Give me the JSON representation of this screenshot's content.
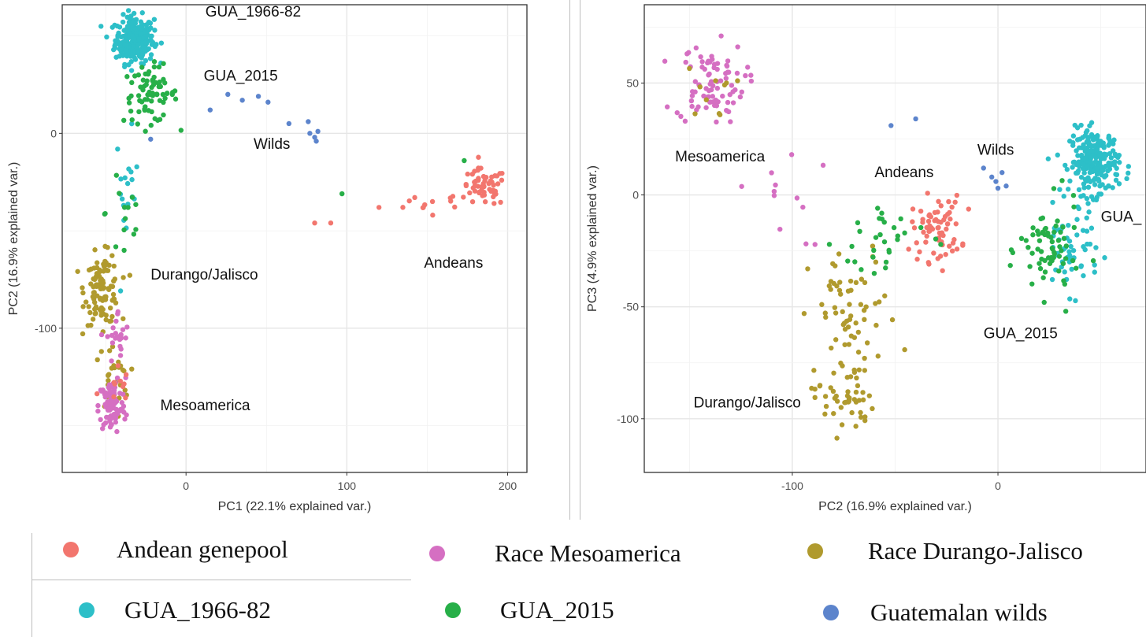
{
  "colors": {
    "andean": "#F2766E",
    "mesoamerica": "#D56FC2",
    "durango": "#B09A2E",
    "gua6682": "#2DBFC8",
    "gua2015": "#27AF48",
    "wilds": "#5C84CC"
  },
  "chart_data": [
    {
      "type": "scatter",
      "xlabel": "PC1 (22.1% explained var.)",
      "ylabel": "PC2 (16.9% explained var.)",
      "xlim": [
        -77,
        212
      ],
      "ylim": [
        -174,
        66
      ],
      "xticks": [
        0,
        100,
        200
      ],
      "yticks": [
        -100,
        0
      ],
      "grid": true,
      "annotations": [
        {
          "text": "GUA_1966-82",
          "x": 12,
          "y": 60
        },
        {
          "text": "GUA_2015",
          "x": 11,
          "y": 27
        },
        {
          "text": "Wilds",
          "x": 42,
          "y": -8
        },
        {
          "text": "Andeans",
          "x": 148,
          "y": -69
        },
        {
          "text": "Durango/Jalisco",
          "x": -22,
          "y": -75
        },
        {
          "text": "Mesoamerica",
          "x": -16,
          "y": -142
        }
      ],
      "groups": [
        {
          "key": "gua6682",
          "cx": [
            -32,
            10
          ],
          "cy": [
            48,
            10
          ],
          "n": 260
        },
        {
          "key": "gua6682",
          "cx": [
            -37,
            6
          ],
          "cy": [
            -30,
            25
          ],
          "n": 18
        },
        {
          "key": "gua2015",
          "cx": [
            -22,
            14
          ],
          "cy": [
            20,
            12
          ],
          "n": 75
        },
        {
          "key": "gua2015",
          "cx": [
            -38,
            10
          ],
          "cy": [
            -40,
            30
          ],
          "n": 14
        },
        {
          "key": "wilds",
          "x": [
            26,
            35,
            45,
            51,
            64,
            76,
            77,
            80,
            81,
            82,
            15,
            -22
          ],
          "y": [
            20,
            17,
            19,
            16,
            5,
            6,
            0,
            -2,
            -4,
            1,
            12,
            -3
          ]
        },
        {
          "key": "andean",
          "cx": [
            185,
            12
          ],
          "cy": [
            -28,
            8
          ],
          "n": 55
        },
        {
          "key": "andean",
          "cx": [
            150,
            25
          ],
          "cy": [
            -37,
            5
          ],
          "n": 12
        },
        {
          "key": "andean",
          "x": [
            80,
            90,
            120
          ],
          "y": [
            -46,
            -46,
            -38
          ]
        },
        {
          "key": "gua2015",
          "x": [
            97,
            173
          ],
          "y": [
            -31,
            -14
          ]
        },
        {
          "key": "durango",
          "cx": [
            -52,
            9
          ],
          "cy": [
            -80,
            15
          ],
          "n": 110
        },
        {
          "key": "durango",
          "cx": [
            -45,
            8
          ],
          "cy": [
            -125,
            15
          ],
          "n": 25
        },
        {
          "key": "mesoamerica",
          "cx": [
            -46,
            7
          ],
          "cy": [
            -140,
            12
          ],
          "n": 90
        },
        {
          "key": "mesoamerica",
          "cx": [
            -42,
            6
          ],
          "cy": [
            -105,
            12
          ],
          "n": 25
        },
        {
          "key": "andean",
          "cx": [
            -45,
            8
          ],
          "cy": [
            -130,
            10
          ],
          "n": 10
        }
      ]
    },
    {
      "type": "scatter",
      "xlabel": "PC2 (16.9% explained var.)",
      "ylabel": "PC3 (4.9% explained var.)",
      "xlim": [
        -172,
        72
      ],
      "ylim": [
        -124,
        85
      ],
      "xticks": [
        -100,
        0
      ],
      "yticks": [
        -100,
        -50,
        0,
        50
      ],
      "grid": true,
      "annotations": [
        {
          "text": "Mesoamerica",
          "x": -157,
          "y": 15
        },
        {
          "text": "Andeans",
          "x": -60,
          "y": 8
        },
        {
          "text": "Wilds",
          "x": -10,
          "y": 18
        },
        {
          "text": "GUA_",
          "x": 50,
          "y": -12
        },
        {
          "text": "GUA_2015",
          "x": -7,
          "y": -64
        },
        {
          "text": "Durango/Jalisco",
          "x": -148,
          "y": -95
        }
      ],
      "groups": [
        {
          "key": "mesoamerica",
          "cx": [
            -140,
            14
          ],
          "cy": [
            50,
            15
          ],
          "n": 85
        },
        {
          "key": "mesoamerica",
          "cx": [
            -105,
            18
          ],
          "cy": [
            0,
            20
          ],
          "n": 12
        },
        {
          "key": "durango",
          "cx": [
            -140,
            10
          ],
          "cy": [
            45,
            10
          ],
          "n": 10
        },
        {
          "key": "durango",
          "cx": [
            -75,
            12
          ],
          "cy": [
            -90,
            14
          ],
          "n": 50
        },
        {
          "key": "durango",
          "cx": [
            -70,
            18
          ],
          "cy": [
            -55,
            25
          ],
          "n": 60
        },
        {
          "key": "andean",
          "cx": [
            -30,
            10
          ],
          "cy": [
            -15,
            12
          ],
          "n": 70
        },
        {
          "key": "gua6682",
          "cx": [
            47,
            10
          ],
          "cy": [
            15,
            12
          ],
          "n": 230
        },
        {
          "key": "gua6682",
          "cx": [
            35,
            12
          ],
          "cy": [
            -25,
            15
          ],
          "n": 55
        },
        {
          "key": "gua2015",
          "cx": [
            25,
            12
          ],
          "cy": [
            -25,
            18
          ],
          "n": 70
        },
        {
          "key": "gua2015",
          "cx": [
            -55,
            20
          ],
          "cy": [
            -20,
            18
          ],
          "n": 30
        },
        {
          "key": "wilds",
          "x": [
            -7,
            -3,
            -1,
            0,
            2,
            4,
            -52,
            -40
          ],
          "y": [
            12,
            8,
            6,
            3,
            10,
            4,
            31,
            34
          ]
        }
      ]
    }
  ],
  "legend": {
    "items": [
      {
        "key": "andean",
        "label": "Andean genepool"
      },
      {
        "key": "mesoamerica",
        "label": "Race Mesoamerica"
      },
      {
        "key": "durango",
        "label": "Race Durango-Jalisco"
      },
      {
        "key": "gua6682",
        "label": "GUA_1966-82"
      },
      {
        "key": "gua2015",
        "label": "GUA_2015"
      },
      {
        "key": "wilds",
        "label": "Guatemalan wilds"
      }
    ]
  }
}
